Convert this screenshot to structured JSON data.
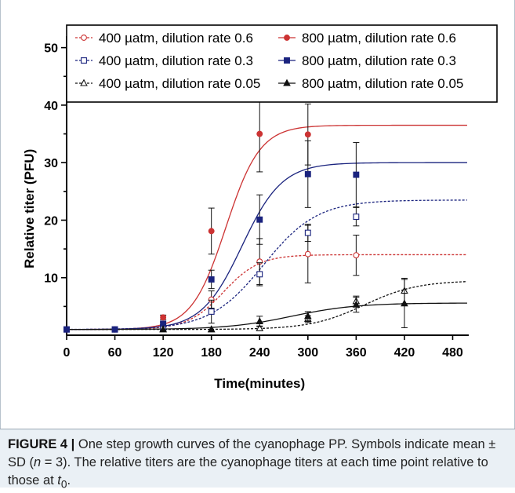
{
  "chart_data": {
    "type": "line",
    "xlabel": "Time(minutes)",
    "ylabel": "Relative titer (PFU)",
    "xlim": [
      0,
      500
    ],
    "ylim": [
      0,
      52
    ],
    "xticks": [
      0,
      60,
      120,
      180,
      240,
      300,
      360,
      420,
      480
    ],
    "yticks": [
      10,
      20,
      30,
      40,
      50
    ],
    "grid": false,
    "legend_position": "top",
    "series": [
      {
        "name": "400 µatm, dilution rate 0.6",
        "marker": "open-circle",
        "line_style": "dotted",
        "color": "#cc3333",
        "x": [
          0,
          60,
          120,
          180,
          240,
          300,
          360
        ],
        "y": [
          1,
          1,
          1.5,
          6.2,
          12.8,
          14.1,
          13.9
        ],
        "err": [
          0,
          0,
          0.3,
          1.5,
          4,
          5,
          3.5
        ],
        "fit": {
          "base": 1,
          "top": 14,
          "mid": 195,
          "k": 0.045
        }
      },
      {
        "name": "800 µatm, dilution rate 0.6",
        "marker": "filled-circle",
        "line_style": "solid",
        "color": "#cc3333",
        "x": [
          0,
          60,
          120,
          180,
          240,
          300
        ],
        "y": [
          1,
          1,
          3.1,
          18.1,
          35,
          34.9
        ],
        "err": [
          0,
          0,
          0.4,
          4,
          6.6,
          5.3
        ],
        "fit": {
          "base": 1,
          "top": 36.5,
          "mid": 198,
          "k": 0.047
        }
      },
      {
        "name": "400 µatm, dilution rate 0.3",
        "marker": "open-square",
        "line_style": "dotted",
        "color": "#1a237e",
        "x": [
          0,
          60,
          120,
          180,
          240,
          300,
          360
        ],
        "y": [
          1,
          1,
          1.1,
          4.1,
          10.6,
          17.8,
          20.6
        ],
        "err": [
          0,
          0,
          0.3,
          2,
          2,
          1.5,
          1.6
        ],
        "fit": {
          "base": 1,
          "top": 23.5,
          "mid": 245,
          "k": 0.03
        }
      },
      {
        "name": "800 µatm, dilution rate 0.3",
        "marker": "filled-square",
        "line_style": "solid",
        "color": "#1a237e",
        "x": [
          0,
          60,
          120,
          180,
          240,
          300,
          360
        ],
        "y": [
          1,
          1,
          2,
          9.7,
          20.1,
          28,
          27.9
        ],
        "err": [
          0,
          0,
          0.3,
          1.6,
          4.3,
          5.8,
          5.6
        ],
        "fit": {
          "base": 1,
          "top": 30,
          "mid": 218,
          "k": 0.04
        }
      },
      {
        "name": "400 µatm, dilution rate 0.05",
        "marker": "open-triangle",
        "line_style": "dotted",
        "color": "#111111",
        "x": [
          120,
          180,
          240,
          300,
          360,
          420
        ],
        "y": [
          1,
          1,
          1.2,
          2.8,
          5.9,
          7.7
        ],
        "err": [
          0,
          0,
          0.4,
          0.6,
          0.9,
          2.2
        ],
        "fit": {
          "base": 1,
          "top": 9.5,
          "mid": 370,
          "k": 0.03
        }
      },
      {
        "name": "800 µatm, dilution rate 0.05",
        "marker": "filled-triangle",
        "line_style": "solid",
        "color": "#111111",
        "x": [
          120,
          180,
          240,
          300,
          360,
          420
        ],
        "y": [
          1,
          1,
          2.4,
          3.3,
          5.3,
          5.5
        ],
        "err": [
          0,
          0,
          0.9,
          0.8,
          1.3,
          4.2
        ],
        "fit": {
          "base": 1,
          "top": 5.6,
          "mid": 280,
          "k": 0.025
        }
      }
    ]
  },
  "caption": {
    "label": "FIGURE 4 |",
    "text_1": " One step growth curves of the cyanophage PP. Symbols indicate mean ± SD (",
    "n_symbol": "n",
    "text_2": " = 3). The relative titers are the cyanophage titers at each time point relative to those at ",
    "t_symbol": "t",
    "t_sub": "0",
    "text_3": "."
  }
}
